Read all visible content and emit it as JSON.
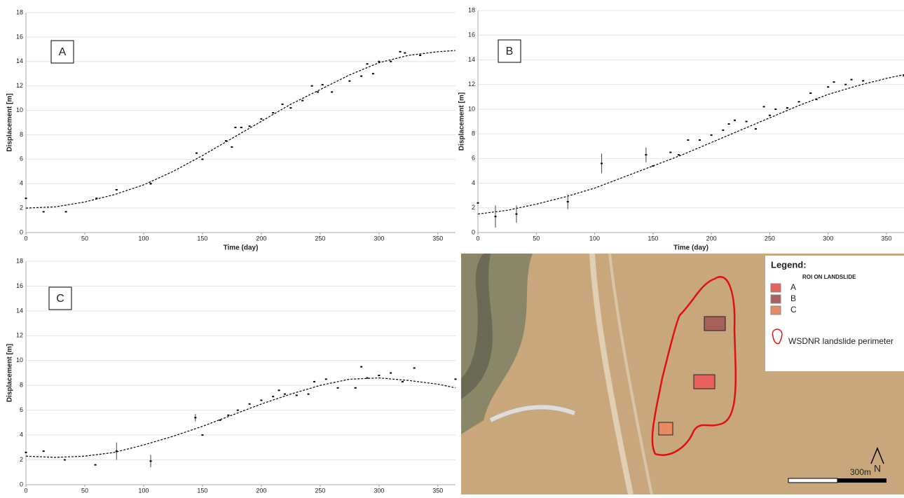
{
  "chart_data": [
    {
      "type": "scatter",
      "annotation": "A",
      "xlabel": "Time (day)",
      "ylabel": "Displacement [m]",
      "xlim": [
        0,
        365
      ],
      "ylim": [
        0,
        18
      ],
      "xticks": [
        0,
        50,
        100,
        150,
        200,
        250,
        300,
        350
      ],
      "yticks": [
        0,
        2,
        4,
        6,
        8,
        10,
        12,
        14,
        16,
        18
      ],
      "grid": true,
      "color": "#000000",
      "x": [
        0,
        15,
        34,
        60,
        77,
        106,
        145,
        150,
        170,
        175,
        178,
        183,
        190,
        200,
        210,
        218,
        225,
        235,
        243,
        248,
        252,
        260,
        275,
        285,
        290,
        295,
        300,
        310,
        318,
        322,
        335
      ],
      "values": [
        2.8,
        1.7,
        1.7,
        2.8,
        3.5,
        4.0,
        6.5,
        6.0,
        7.5,
        7.0,
        8.6,
        8.6,
        8.7,
        9.3,
        9.8,
        10.5,
        10.2,
        10.8,
        12.0,
        11.5,
        12.1,
        11.5,
        12.4,
        12.8,
        13.8,
        13.0,
        14.0,
        14.0,
        14.8,
        14.7,
        14.5
      ],
      "errors": [
        null,
        null,
        null,
        null,
        null,
        0.1,
        null,
        null,
        null,
        null,
        null,
        null,
        null,
        null,
        null,
        null,
        null,
        null,
        null,
        null,
        null,
        null,
        null,
        null,
        null,
        null,
        null,
        null,
        null,
        null,
        null
      ],
      "fit": {
        "x": [
          0,
          25,
          50,
          75,
          100,
          125,
          150,
          175,
          200,
          225,
          250,
          275,
          300,
          325,
          350,
          365
        ],
        "values": [
          2.0,
          2.1,
          2.5,
          3.1,
          3.9,
          5.0,
          6.3,
          7.7,
          9.1,
          10.5,
          11.7,
          12.9,
          13.9,
          14.5,
          14.8,
          14.9
        ]
      }
    },
    {
      "type": "scatter",
      "annotation": "B",
      "xlabel": "Time (day)",
      "ylabel": "Displacement [m]",
      "xlim": [
        0,
        365
      ],
      "ylim": [
        0,
        18
      ],
      "xticks": [
        0,
        50,
        100,
        150,
        200,
        250,
        300,
        350
      ],
      "yticks": [
        0,
        2,
        4,
        6,
        8,
        10,
        12,
        14,
        16,
        18
      ],
      "grid": true,
      "color": "#000000",
      "x": [
        0,
        15,
        33,
        77,
        106,
        144,
        150,
        165,
        172,
        180,
        190,
        200,
        210,
        215,
        220,
        230,
        238,
        245,
        250,
        255,
        265,
        275,
        285,
        290,
        300,
        305,
        315,
        320,
        330,
        365
      ],
      "values": [
        2.4,
        1.3,
        1.5,
        2.5,
        5.6,
        6.3,
        5.4,
        6.5,
        6.3,
        7.5,
        7.5,
        7.9,
        8.3,
        8.8,
        9.1,
        9.0,
        8.4,
        10.2,
        9.5,
        10.0,
        10.1,
        10.6,
        11.3,
        10.8,
        11.8,
        12.2,
        12.0,
        12.4,
        12.3,
        12.7
      ],
      "errors": [
        null,
        0.9,
        0.7,
        0.6,
        0.8,
        0.6,
        null,
        null,
        null,
        null,
        null,
        null,
        null,
        null,
        null,
        null,
        null,
        null,
        null,
        null,
        null,
        null,
        null,
        null,
        null,
        null,
        null,
        null,
        null,
        null
      ],
      "fit": {
        "x": [
          0,
          25,
          50,
          75,
          100,
          125,
          150,
          175,
          200,
          225,
          250,
          275,
          300,
          325,
          350,
          365
        ],
        "values": [
          1.5,
          1.8,
          2.3,
          2.9,
          3.6,
          4.5,
          5.4,
          6.3,
          7.3,
          8.3,
          9.3,
          10.3,
          11.2,
          11.9,
          12.5,
          12.8
        ]
      }
    },
    {
      "type": "scatter",
      "annotation": "C",
      "ylabel": "Displacement [m]",
      "xlim": [
        0,
        365
      ],
      "ylim": [
        0,
        18
      ],
      "xticks": [
        0,
        50,
        100,
        150,
        200,
        250,
        300,
        350
      ],
      "yticks": [
        0,
        2,
        4,
        6,
        8,
        10,
        12,
        14,
        16,
        18
      ],
      "grid": true,
      "color": "#000000",
      "x": [
        0,
        15,
        33,
        59,
        77,
        106,
        144,
        150,
        165,
        172,
        180,
        190,
        200,
        210,
        215,
        220,
        230,
        240,
        245,
        255,
        265,
        280,
        285,
        290,
        300,
        310,
        320,
        330,
        365
      ],
      "values": [
        2.6,
        2.7,
        2.0,
        1.6,
        2.7,
        1.9,
        5.4,
        4.0,
        5.2,
        5.6,
        6.0,
        6.5,
        6.8,
        7.1,
        7.6,
        7.3,
        7.2,
        7.3,
        8.3,
        8.5,
        7.8,
        7.8,
        9.5,
        8.6,
        8.8,
        9.0,
        8.3,
        9.4,
        8.5
      ],
      "errors": [
        null,
        null,
        null,
        null,
        0.7,
        0.5,
        0.3,
        null,
        null,
        null,
        null,
        null,
        null,
        null,
        null,
        null,
        null,
        null,
        null,
        null,
        null,
        null,
        null,
        null,
        null,
        null,
        null,
        null,
        null
      ],
      "fit": {
        "x": [
          0,
          25,
          50,
          75,
          100,
          125,
          150,
          175,
          200,
          225,
          250,
          275,
          300,
          325,
          350,
          365
        ],
        "values": [
          2.3,
          2.2,
          2.3,
          2.6,
          3.2,
          3.9,
          4.7,
          5.6,
          6.5,
          7.3,
          8.0,
          8.5,
          8.6,
          8.4,
          8.1,
          7.8
        ]
      }
    }
  ],
  "map": {
    "legend_title": "Legend:",
    "legend_subtitle": "ROI ON LANDSLIDE",
    "items": [
      {
        "label": "A",
        "color": "#e8615c"
      },
      {
        "label": "B",
        "color": "#a8605a"
      },
      {
        "label": "C",
        "color": "#e88a62"
      }
    ],
    "perimeter_label": "WSDNR landslide perimeter",
    "scale_label": "300m",
    "north": "N"
  }
}
